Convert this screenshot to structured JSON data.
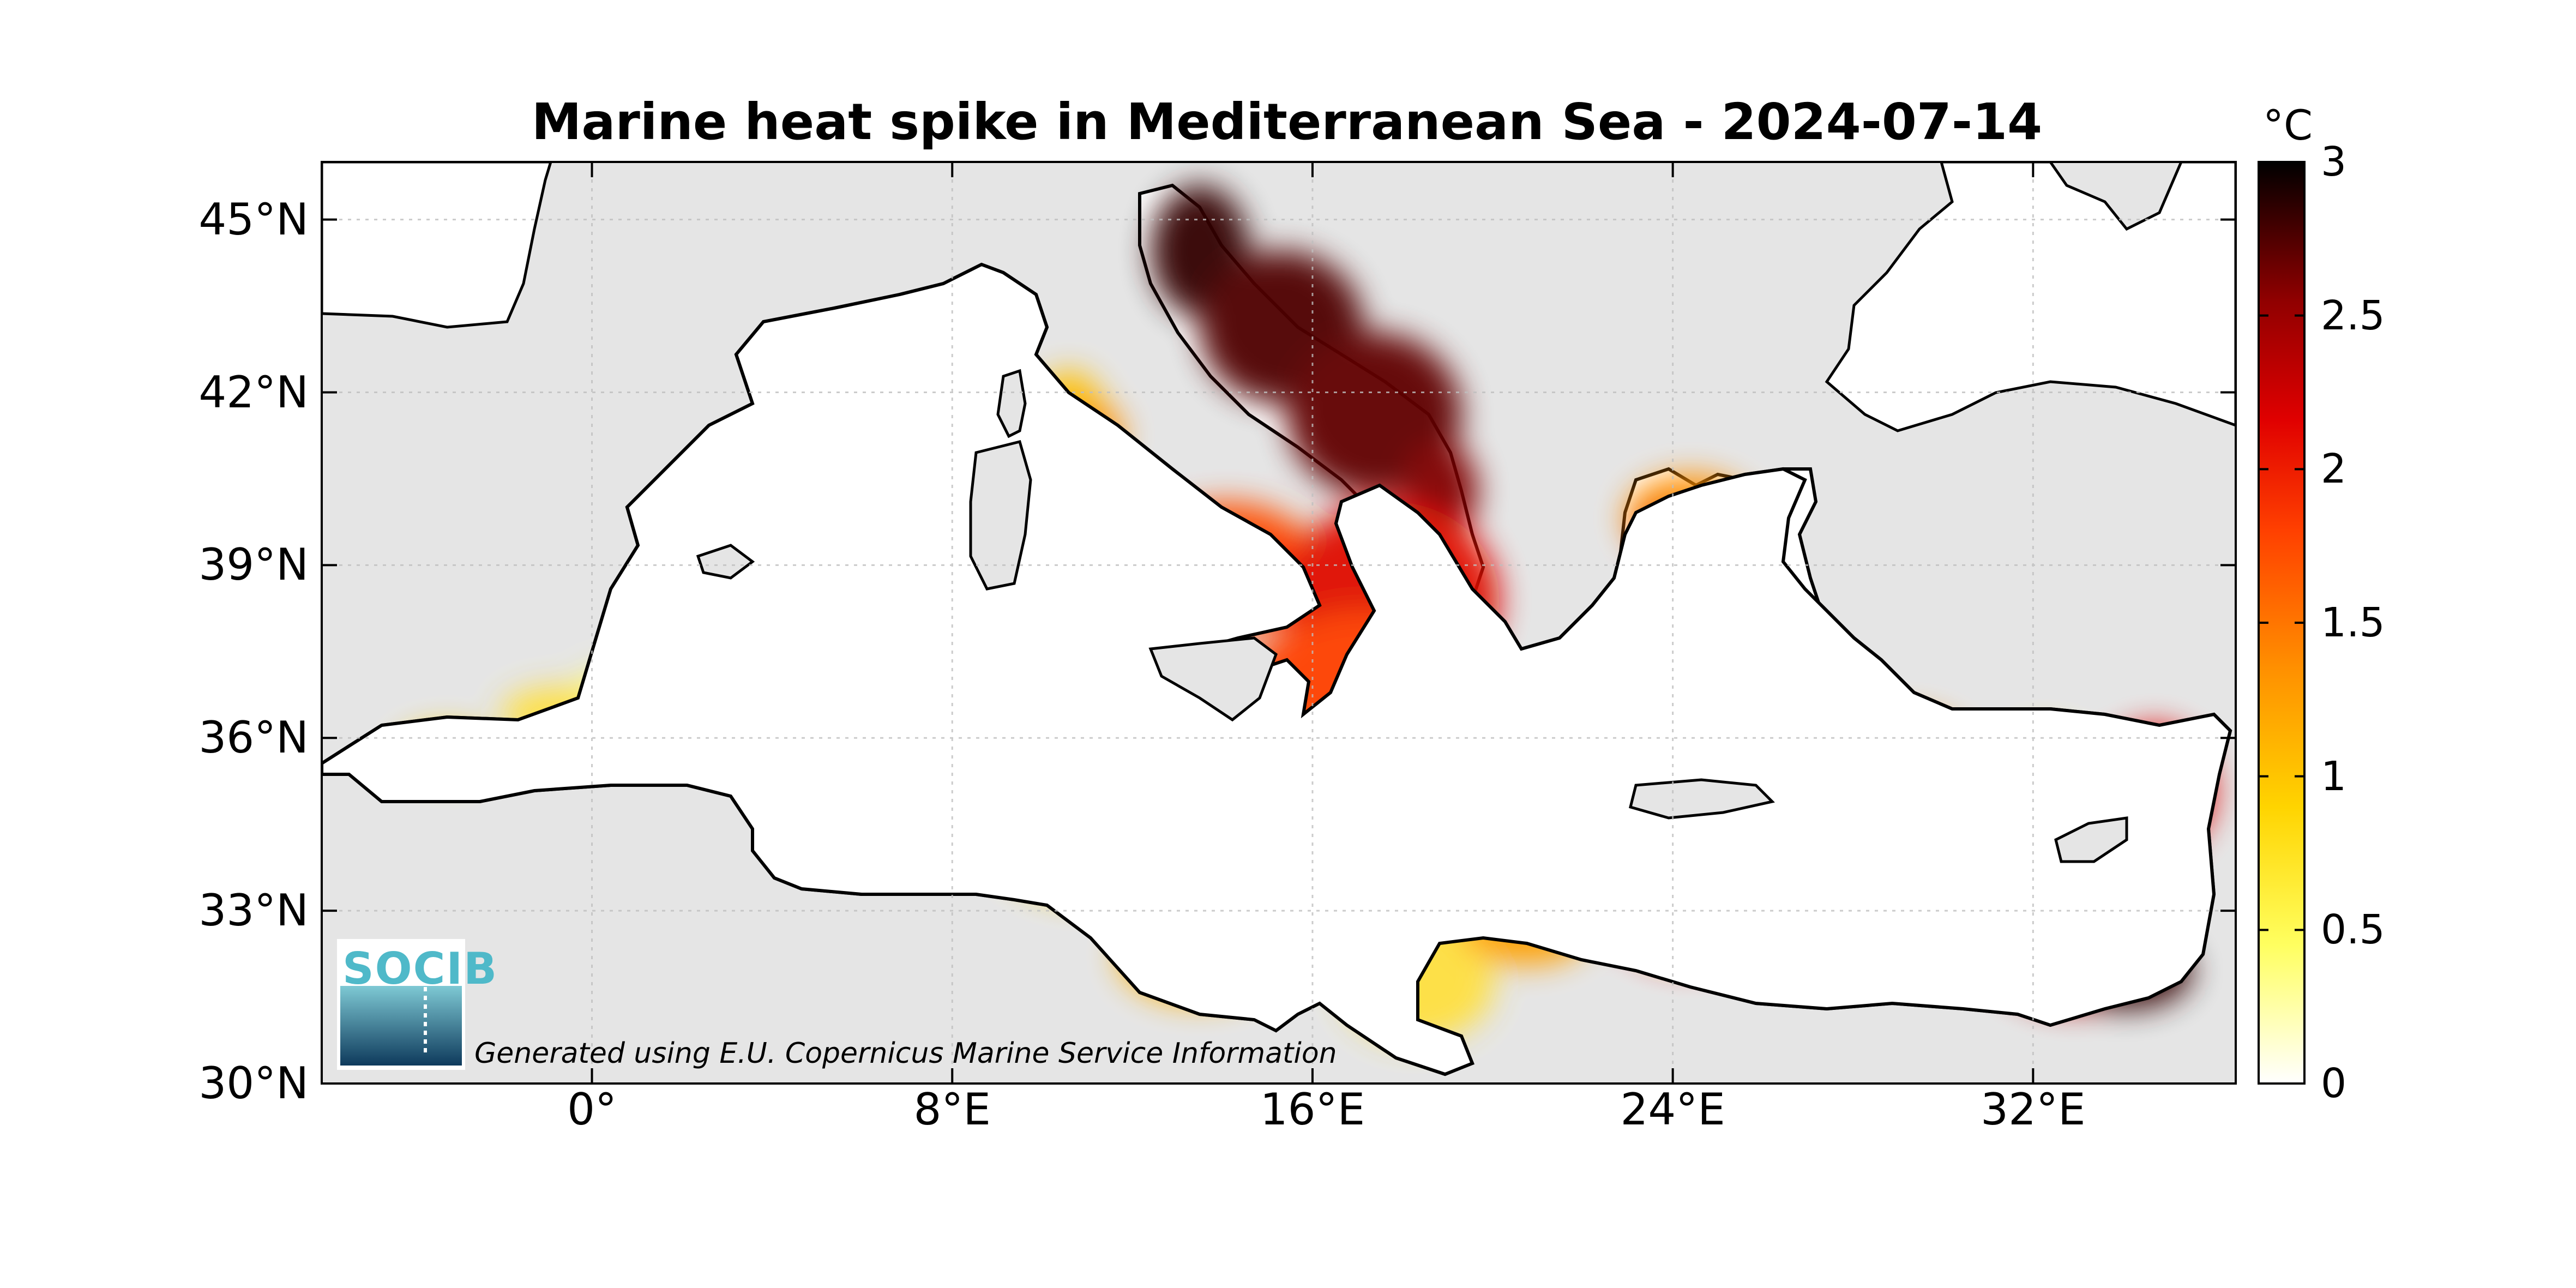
{
  "title": "Marine heat spike in Mediterranean Sea - 2024-07-14",
  "axes": {
    "lat_ticks": [
      "45°N",
      "42°N",
      "39°N",
      "36°N",
      "33°N",
      "30°N"
    ],
    "lat_values": [
      45,
      42,
      39,
      36,
      33,
      30
    ],
    "lon_ticks": [
      "0°",
      "8°E",
      "16°E",
      "24°E",
      "32°E"
    ],
    "lon_values": [
      0,
      8,
      16,
      24,
      32
    ],
    "lon_range": [
      -6,
      36.5
    ],
    "lat_range": [
      30,
      46
    ]
  },
  "colorbar": {
    "unit": "°C",
    "ticks": [
      "0",
      "0.5",
      "1",
      "1.5",
      "2",
      "2.5",
      "3"
    ],
    "range": [
      0,
      3
    ],
    "colormap": [
      "#ffffff",
      "#ffff40",
      "#ffcc00",
      "#ff8000",
      "#ff2000",
      "#c00000",
      "#600000",
      "#000000"
    ]
  },
  "attribution": "Generated using E.U. Copernicus Marine Service Information",
  "logo": {
    "text": "SOCIB",
    "color": "#4fb9c9"
  },
  "colors": {
    "land": "#e5e5e5",
    "sea_base": "#ffffff"
  }
}
